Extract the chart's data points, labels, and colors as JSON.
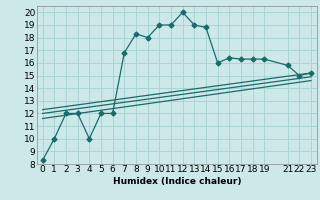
{
  "xlabel": "Humidex (Indice chaleur)",
  "bg_color": "#cce8e8",
  "grid_color": "#aad4d4",
  "line_color": "#1a6b6b",
  "xlim": [
    -0.5,
    23.5
  ],
  "ylim": [
    8,
    20.5
  ],
  "xticks": [
    0,
    1,
    2,
    3,
    4,
    5,
    6,
    7,
    8,
    9,
    10,
    11,
    12,
    13,
    14,
    15,
    16,
    17,
    18,
    19,
    21,
    22,
    23
  ],
  "xtick_labels": [
    "0",
    "1",
    "2",
    "3",
    "4",
    "5",
    "6",
    "7",
    "8",
    "9",
    "10",
    "11",
    "12",
    "13",
    "14",
    "15",
    "16",
    "17",
    "18",
    "19",
    "21",
    "22",
    "23"
  ],
  "yticks": [
    8,
    9,
    10,
    11,
    12,
    13,
    14,
    15,
    16,
    17,
    18,
    19,
    20
  ],
  "line1_x": [
    0,
    1,
    2,
    3,
    4,
    5,
    6,
    7,
    8,
    9,
    10,
    11,
    12,
    13,
    14,
    15,
    16,
    17,
    18,
    19,
    21,
    22,
    23
  ],
  "line1_y": [
    8.3,
    10,
    12,
    12,
    10,
    12,
    12,
    16.8,
    18.3,
    18,
    19,
    19,
    20,
    19,
    18.8,
    16,
    16.4,
    16.3,
    16.3,
    16.3,
    15.8,
    15,
    15.2
  ],
  "line2_x": [
    0,
    23
  ],
  "line2_y": [
    12.3,
    15.2
  ],
  "line3_x": [
    0,
    23
  ],
  "line3_y": [
    12.0,
    14.9
  ],
  "line4_x": [
    0,
    23
  ],
  "line4_y": [
    11.6,
    14.6
  ],
  "marker": "D",
  "marker_size": 2.5,
  "font_size": 6.5
}
